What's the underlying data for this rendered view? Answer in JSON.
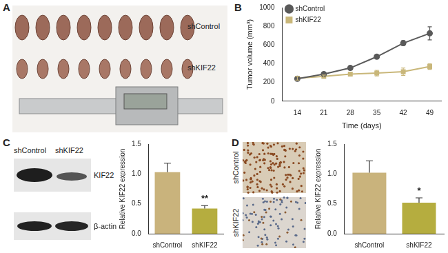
{
  "panel_labels": [
    "A",
    "B",
    "C",
    "D"
  ],
  "photo_a": {
    "rows": [
      "shControl",
      "shKIF22"
    ]
  },
  "blot_c": {
    "lanes": [
      "shControl",
      "shKIF22"
    ],
    "bands": [
      "KIF22",
      "β-actin"
    ]
  },
  "ihc_d": {
    "rows": [
      "shControl",
      "shKIF22"
    ]
  },
  "chart_data": [
    {
      "type": "line",
      "x": [
        14,
        21,
        28,
        35,
        42,
        49
      ],
      "xlim": [
        10,
        52
      ],
      "xticks": [
        14,
        21,
        28,
        35,
        42,
        49
      ],
      "ylim": [
        0,
        1000
      ],
      "yticks": [
        0,
        200,
        400,
        600,
        800,
        1000
      ],
      "x_label": "Time (days)",
      "y_label": "Tumor volume (mm³)",
      "legend": "upper left",
      "grid": false,
      "series": [
        {
          "name": "shControl",
          "color": "#5a5a5a",
          "marker": "circle",
          "values": [
            240,
            290,
            355,
            475,
            620,
            725
          ],
          "error": [
            20,
            15,
            20,
            20,
            25,
            70
          ]
        },
        {
          "name": "shKIF22",
          "color": "#c9b77a",
          "marker": "square",
          "values": [
            245,
            265,
            290,
            300,
            315,
            370
          ],
          "error": [
            20,
            15,
            15,
            30,
            40,
            30
          ]
        }
      ]
    },
    {
      "type": "bar",
      "categories": [
        "shControl",
        "shKIF22"
      ],
      "values": [
        1.03,
        0.42
      ],
      "error": [
        0.15,
        0.05
      ],
      "colors": [
        "#c9b37c",
        "#b5ad3f"
      ],
      "ylim": [
        0,
        1.5
      ],
      "yticks": [
        {
          "value": 0,
          "label": "0.0"
        },
        {
          "value": 0.5,
          "label": "0.5"
        },
        {
          "value": 1,
          "label": "1.0"
        },
        {
          "value": 1.5,
          "label": "1.5"
        }
      ],
      "y_label": "Relative KIF22 expression",
      "grid": false,
      "annotations": [
        {
          "category": "shKIF22",
          "text": "**"
        }
      ]
    },
    {
      "type": "bar",
      "categories": [
        "shControl",
        "shKIF22"
      ],
      "values": [
        1.02,
        0.52
      ],
      "error": [
        0.2,
        0.08
      ],
      "colors": [
        "#c9b37c",
        "#b5ad3f"
      ],
      "ylim": [
        0,
        1.5
      ],
      "yticks": [
        {
          "value": 0,
          "label": "0.0"
        },
        {
          "value": 0.5,
          "label": "0.5"
        },
        {
          "value": 1,
          "label": "1.0"
        },
        {
          "value": 1.5,
          "label": "1.5"
        }
      ],
      "y_label": "Relative KIF22 expression",
      "grid": false,
      "annotations": [
        {
          "category": "shKIF22",
          "text": "*"
        }
      ]
    }
  ]
}
